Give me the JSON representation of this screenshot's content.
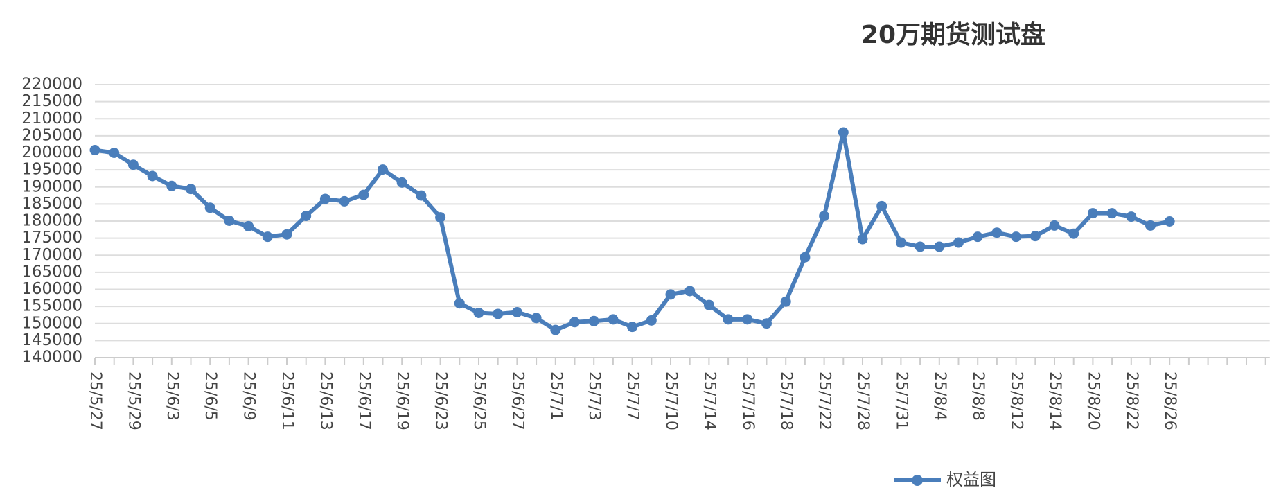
{
  "chart_data": {
    "type": "line",
    "title": "20万期货测试盘",
    "categories": [
      "25/5/27",
      null,
      "25/5/29",
      null,
      "25/6/3",
      null,
      "25/6/5",
      null,
      "25/6/9",
      null,
      "25/6/11",
      null,
      "25/6/13",
      null,
      "25/6/17",
      null,
      "25/6/19",
      null,
      "25/6/23",
      null,
      "25/6/25",
      null,
      "25/6/27",
      null,
      "25/7/1",
      null,
      "25/7/3",
      null,
      "25/7/7",
      null,
      "25/7/10",
      null,
      "25/7/14",
      null,
      "25/7/16",
      null,
      "25/7/18",
      null,
      "25/7/22",
      null,
      "25/7/28",
      null,
      "25/7/31",
      null,
      "25/8/4",
      null,
      "25/8/8",
      null,
      "25/8/12",
      null,
      "25/8/14",
      null,
      "25/8/20",
      null,
      "25/8/22",
      null,
      "25/8/26",
      null,
      null,
      null,
      null,
      null
    ],
    "series": [
      {
        "name": "权益图",
        "color": "#4a7ebb",
        "values": [
          200800,
          200000,
          196500,
          193200,
          190300,
          189400,
          183900,
          180100,
          178500,
          175400,
          176100,
          181500,
          186500,
          185800,
          187700,
          195100,
          191300,
          187500,
          181100,
          155900,
          153100,
          152800,
          153300,
          151600,
          148100,
          150400,
          150700,
          151200,
          149000,
          150900,
          158500,
          159500,
          155400,
          151200,
          151200,
          150000,
          156400,
          169400,
          181500,
          206000,
          174700,
          184400,
          173700,
          172500,
          172500,
          173700,
          175400,
          176600,
          175400,
          175600,
          178700,
          176300,
          182300,
          182300,
          181300,
          178700,
          179900,
          null,
          null,
          null,
          null,
          null
        ]
      }
    ],
    "ylim": [
      140000,
      220000
    ],
    "yticks": [
      140000,
      145000,
      150000,
      155000,
      160000,
      165000,
      170000,
      175000,
      180000,
      185000,
      190000,
      195000,
      200000,
      205000,
      210000,
      215000,
      220000
    ],
    "grid": true,
    "legend": "bottom"
  }
}
